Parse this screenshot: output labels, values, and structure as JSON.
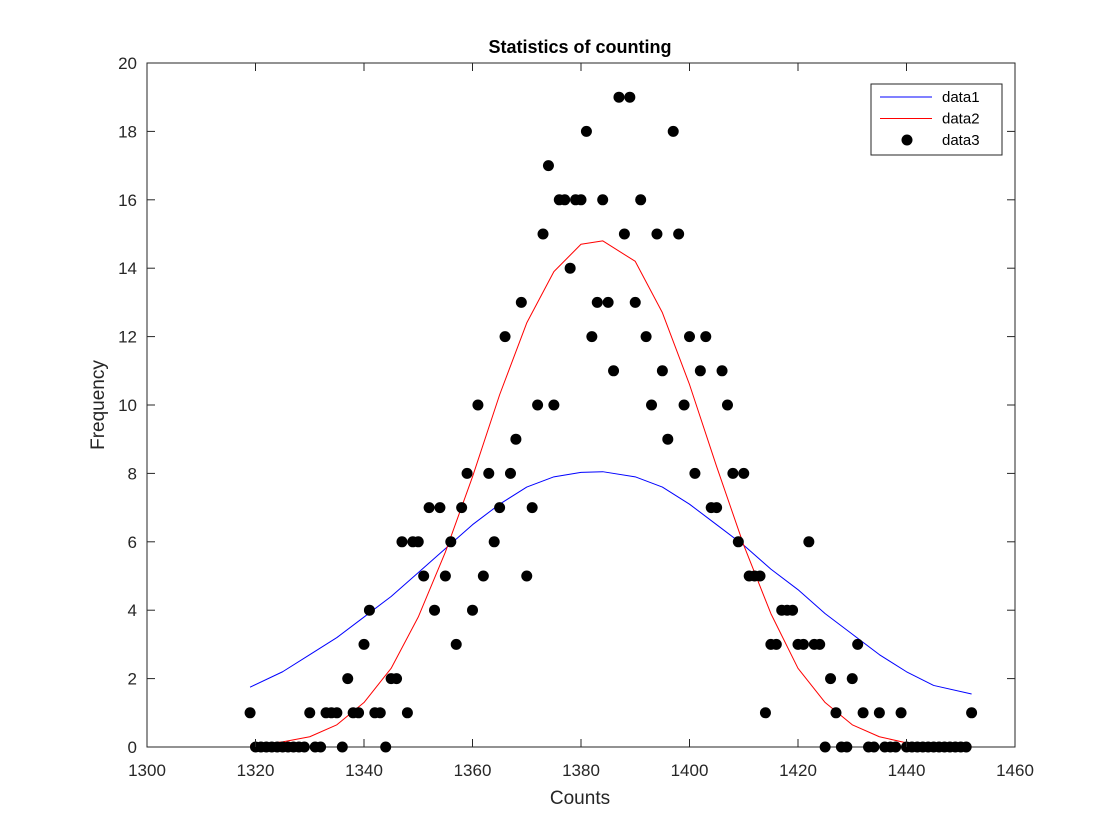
{
  "chart_data": {
    "type": "scatter",
    "title": "Statistics of counting",
    "xlabel": "Counts",
    "ylabel": "Frequency",
    "xlim": [
      1300,
      1460
    ],
    "ylim": [
      0,
      20
    ],
    "xticks": [
      1300,
      1320,
      1340,
      1360,
      1380,
      1400,
      1420,
      1440,
      1460
    ],
    "yticks": [
      0,
      2,
      4,
      6,
      8,
      10,
      12,
      14,
      16,
      18,
      20
    ],
    "grid": false,
    "legend_position": "top-right",
    "series": [
      {
        "name": "data1",
        "kind": "line",
        "color": "#0000ff",
        "x": [
          1319,
          1325,
          1330,
          1335,
          1340,
          1345,
          1350,
          1355,
          1360,
          1365,
          1370,
          1375,
          1380,
          1384,
          1390,
          1395,
          1400,
          1405,
          1410,
          1415,
          1420,
          1425,
          1430,
          1435,
          1440,
          1445,
          1452
        ],
        "y": [
          1.75,
          2.2,
          2.7,
          3.2,
          3.8,
          4.4,
          5.1,
          5.8,
          6.5,
          7.1,
          7.6,
          7.9,
          8.03,
          8.05,
          7.9,
          7.6,
          7.1,
          6.5,
          5.9,
          5.2,
          4.6,
          3.9,
          3.3,
          2.7,
          2.2,
          1.8,
          1.55
        ]
      },
      {
        "name": "data2",
        "kind": "line",
        "color": "#ff0000",
        "x": [
          1319,
          1325,
          1330,
          1335,
          1340,
          1345,
          1350,
          1355,
          1360,
          1365,
          1370,
          1375,
          1380,
          1384,
          1390,
          1395,
          1400,
          1405,
          1410,
          1415,
          1420,
          1425,
          1430,
          1435,
          1440,
          1445,
          1452
        ],
        "y": [
          0.05,
          0.15,
          0.3,
          0.65,
          1.3,
          2.3,
          3.8,
          5.7,
          7.9,
          10.3,
          12.4,
          13.9,
          14.7,
          14.8,
          14.2,
          12.7,
          10.6,
          8.2,
          5.9,
          3.9,
          2.3,
          1.3,
          0.65,
          0.3,
          0.12,
          0.05,
          0.01
        ]
      },
      {
        "name": "data3",
        "kind": "scatter",
        "color": "#000000",
        "x": [
          1319,
          1320,
          1321,
          1322,
          1323,
          1324,
          1325,
          1326,
          1327,
          1328,
          1329,
          1330,
          1331,
          1332,
          1333,
          1334,
          1335,
          1336,
          1337,
          1338,
          1339,
          1340,
          1341,
          1342,
          1343,
          1344,
          1345,
          1346,
          1347,
          1348,
          1349,
          1350,
          1351,
          1352,
          1353,
          1354,
          1355,
          1356,
          1357,
          1358,
          1359,
          1360,
          1361,
          1362,
          1363,
          1364,
          1365,
          1366,
          1367,
          1368,
          1369,
          1370,
          1371,
          1372,
          1373,
          1374,
          1375,
          1376,
          1377,
          1378,
          1379,
          1380,
          1381,
          1382,
          1383,
          1384,
          1385,
          1386,
          1387,
          1388,
          1389,
          1390,
          1391,
          1392,
          1393,
          1394,
          1395,
          1396,
          1397,
          1398,
          1399,
          1400,
          1401,
          1402,
          1403,
          1404,
          1405,
          1406,
          1407,
          1408,
          1409,
          1410,
          1411,
          1412,
          1413,
          1414,
          1415,
          1416,
          1417,
          1418,
          1419,
          1420,
          1421,
          1422,
          1423,
          1424,
          1425,
          1426,
          1427,
          1428,
          1429,
          1430,
          1431,
          1432,
          1433,
          1434,
          1435,
          1436,
          1437,
          1438,
          1439,
          1440,
          1441,
          1442,
          1443,
          1444,
          1445,
          1446,
          1447,
          1448,
          1449,
          1450,
          1451,
          1452
        ],
        "y": [
          1,
          0,
          0,
          0,
          0,
          0,
          0,
          0,
          0,
          0,
          0,
          1,
          0,
          0,
          1,
          1,
          1,
          0,
          2,
          1,
          1,
          3,
          4,
          1,
          1,
          0,
          2,
          2,
          6,
          1,
          6,
          6,
          5,
          7,
          4,
          7,
          5,
          6,
          3,
          7,
          8,
          4,
          10,
          5,
          8,
          6,
          7,
          12,
          8,
          9,
          13,
          5,
          7,
          10,
          15,
          17,
          10,
          16,
          16,
          14,
          16,
          16,
          18,
          12,
          13,
          16,
          13,
          11,
          19,
          15,
          19,
          13,
          16,
          12,
          10,
          15,
          11,
          9,
          18,
          15,
          10,
          12,
          8,
          11,
          12,
          7,
          7,
          11,
          10,
          8,
          6,
          8,
          5,
          5,
          5,
          1,
          3,
          3,
          4,
          4,
          4,
          3,
          3,
          6,
          3,
          3,
          0,
          2,
          1,
          0,
          0,
          2,
          3,
          1,
          0,
          0,
          1,
          0,
          0,
          0,
          1,
          0,
          0,
          0,
          0,
          0,
          0,
          0,
          0,
          0,
          0,
          0,
          0,
          1
        ]
      }
    ]
  }
}
